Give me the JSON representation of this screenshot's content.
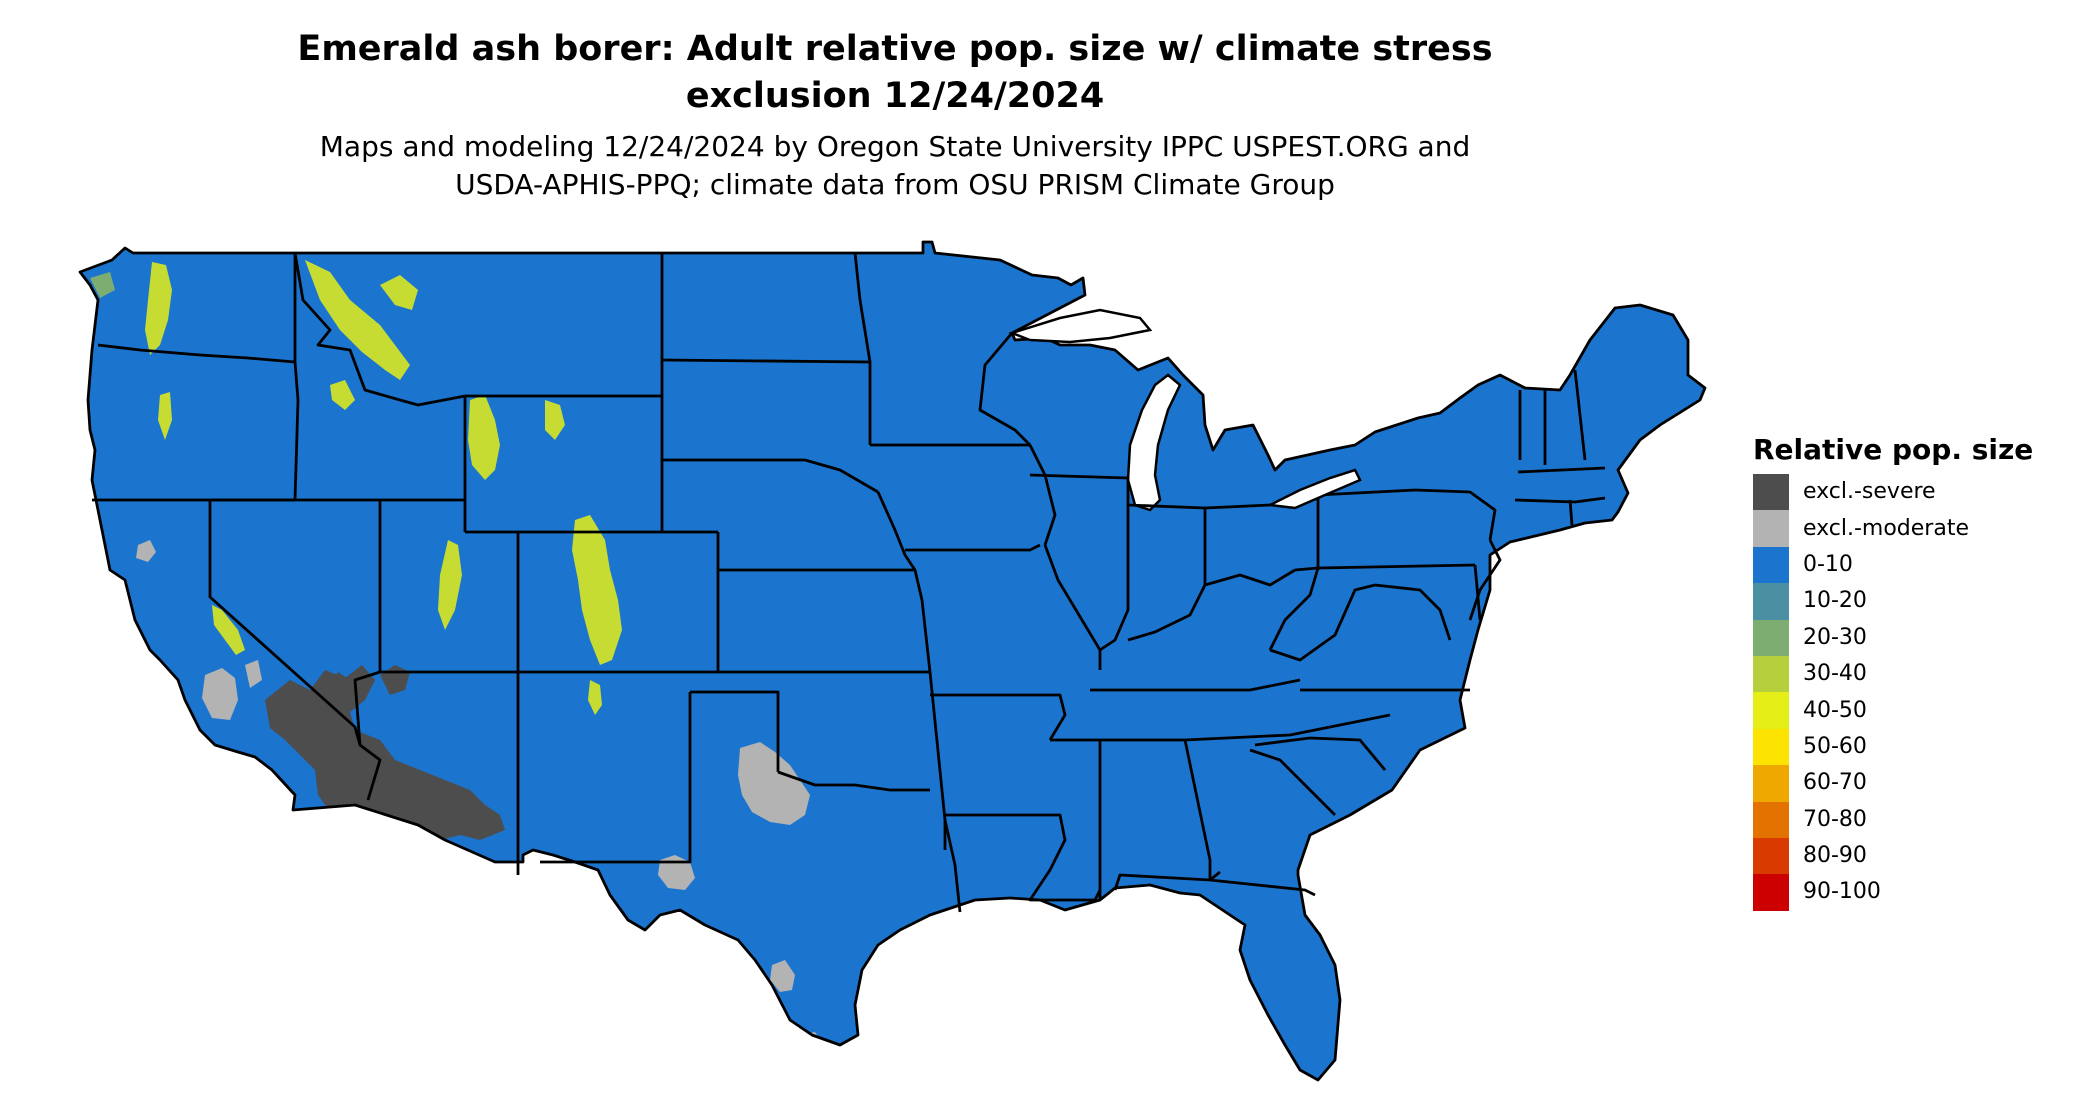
{
  "title": {
    "line1": "Emerald ash borer: Adult relative pop. size w/ climate stress",
    "line2": "exclusion 12/24/2024"
  },
  "subtitle": {
    "line1": "Maps and modeling 12/24/2024 by Oregon State University IPPC USPEST.ORG and",
    "line2": "USDA-APHIS-PPQ; climate data from OSU PRISM Climate Group"
  },
  "legend": {
    "title": "Relative pop. size",
    "items": [
      {
        "label": "excl.-severe",
        "color": "#4d4d4d"
      },
      {
        "label": "excl.-moderate",
        "color": "#b3b3b3"
      },
      {
        "label": "0-10",
        "color": "#1b74cd"
      },
      {
        "label": "10-20",
        "color": "#4a8fa2"
      },
      {
        "label": "20-30",
        "color": "#7ead71"
      },
      {
        "label": "30-40",
        "color": "#b6cf3d"
      },
      {
        "label": "40-50",
        "color": "#e5ee17"
      },
      {
        "label": "50-60",
        "color": "#fde300"
      },
      {
        "label": "60-70",
        "color": "#efa800"
      },
      {
        "label": "70-80",
        "color": "#e47200"
      },
      {
        "label": "80-90",
        "color": "#d83a00"
      },
      {
        "label": "90-100",
        "color": "#cc0000"
      }
    ]
  },
  "map": {
    "base_color": "#1b74cd",
    "border_color": "#000000"
  }
}
